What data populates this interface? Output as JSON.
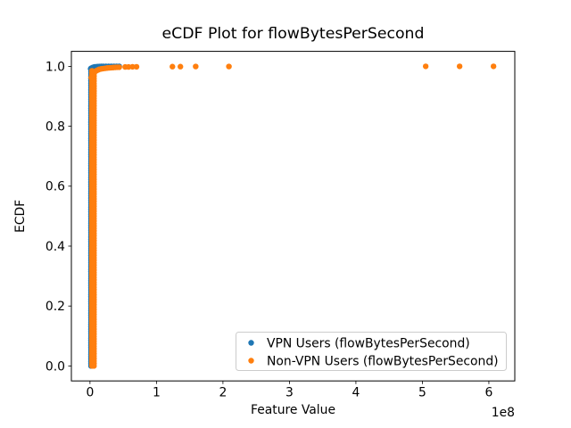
{
  "title": "eCDF Plot for flowBytesPerSecond",
  "axes": {
    "xlabel": "Feature Value",
    "ylabel": "ECDF",
    "x_offset_label": "1e8",
    "x_ticks": [
      0,
      1,
      2,
      3,
      4,
      5,
      6
    ],
    "y_ticks": [
      "0.0",
      "0.2",
      "0.4",
      "0.6",
      "0.8",
      "1.0"
    ],
    "xlim": [
      -0.28,
      6.39
    ],
    "ylim": [
      -0.05,
      1.05
    ]
  },
  "legend": {
    "entries": [
      {
        "label": "VPN Users (flowBytesPerSecond)",
        "color": "#1f77b4",
        "marker": "dot"
      },
      {
        "label": "Non-VPN Users (flowBytesPerSecond)",
        "color": "#ff7f0e",
        "marker": "dot"
      }
    ]
  },
  "chart_data": {
    "type": "scatter",
    "title": "eCDF Plot for flowBytesPerSecond",
    "xlabel": "Feature Value",
    "ylabel": "ECDF",
    "x_unit_multiplier": 100000000,
    "x_offset_label": "1e8",
    "xlim": [
      -0.28,
      6.39
    ],
    "ylim": [
      -0.05,
      1.05
    ],
    "grid": false,
    "legend_position": "lower right",
    "marker_radius_px": 3.2,
    "series": [
      {
        "name": "VPN Users (flowBytesPerSecond)",
        "color": "#1f77b4",
        "dense_vertical": [
          {
            "x": 0.015,
            "y_from": 0.0,
            "y_to": 0.99,
            "n": 130
          }
        ],
        "points": [
          [
            0.01,
            0.992
          ],
          [
            0.02,
            0.994
          ],
          [
            0.04,
            0.996
          ],
          [
            0.06,
            0.9975
          ],
          [
            0.08,
            0.9985
          ],
          [
            0.11,
            0.999
          ],
          [
            0.14,
            0.9995
          ],
          [
            0.17,
            1.0
          ],
          [
            0.2,
            1.0
          ],
          [
            0.24,
            1.0
          ],
          [
            0.28,
            1.0
          ],
          [
            0.32,
            1.0
          ],
          [
            0.36,
            1.0
          ],
          [
            0.4,
            1.0
          ],
          [
            0.44,
            1.0
          ]
        ]
      },
      {
        "name": "Non-VPN Users (flowBytesPerSecond)",
        "color": "#ff7f0e",
        "dense_vertical": [
          {
            "x": 0.03,
            "y_from": 0.0,
            "y_to": 0.985,
            "n": 130
          },
          {
            "x": 0.06,
            "y_from": 0.0,
            "y_to": 0.975,
            "n": 120
          }
        ],
        "points": [
          [
            0.02,
            0.962
          ],
          [
            0.03,
            0.968
          ],
          [
            0.04,
            0.973
          ],
          [
            0.05,
            0.977
          ],
          [
            0.06,
            0.98
          ],
          [
            0.08,
            0.983
          ],
          [
            0.1,
            0.986
          ],
          [
            0.12,
            0.988
          ],
          [
            0.14,
            0.99
          ],
          [
            0.17,
            0.9915
          ],
          [
            0.2,
            0.9925
          ],
          [
            0.23,
            0.9935
          ],
          [
            0.26,
            0.9945
          ],
          [
            0.29,
            0.995
          ],
          [
            0.32,
            0.9955
          ],
          [
            0.35,
            0.996
          ],
          [
            0.38,
            0.9965
          ],
          [
            0.41,
            0.997
          ],
          [
            0.44,
            0.997
          ],
          [
            0.53,
            0.998
          ],
          [
            0.58,
            0.998
          ],
          [
            0.64,
            0.9985
          ],
          [
            0.7,
            0.9985
          ],
          [
            1.24,
            0.999
          ],
          [
            1.36,
            0.999
          ],
          [
            1.59,
            0.9995
          ],
          [
            2.09,
            0.9995
          ],
          [
            5.05,
            1.0
          ],
          [
            5.56,
            1.0
          ],
          [
            6.07,
            1.0
          ]
        ]
      }
    ]
  }
}
